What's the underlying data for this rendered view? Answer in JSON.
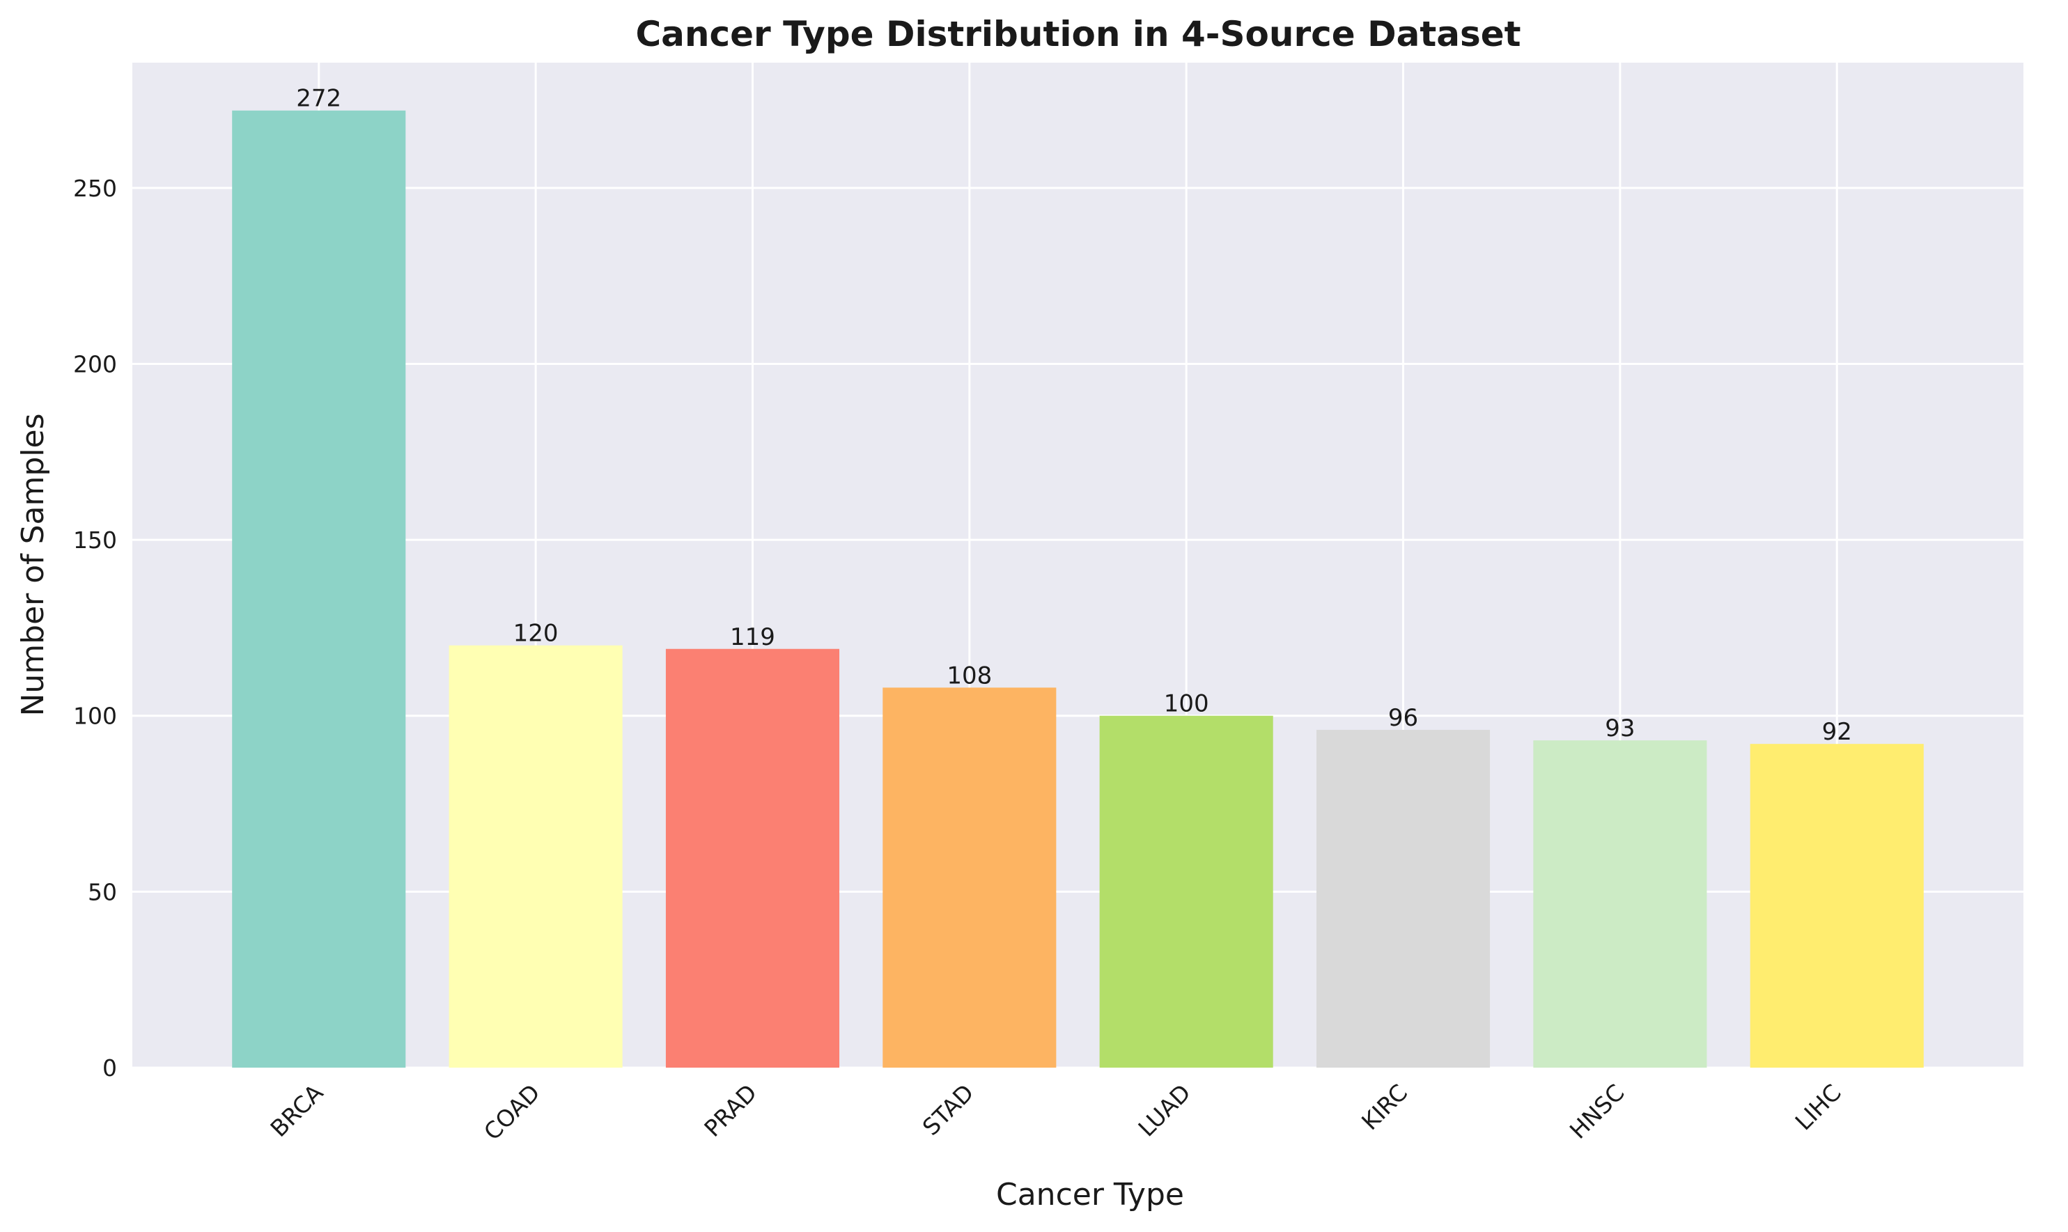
{
  "chart_data": {
    "type": "bar",
    "title": "Cancer Type Distribution in 4-Source Dataset",
    "xlabel": "Cancer Type",
    "ylabel": "Number of Samples",
    "categories": [
      "BRCA",
      "COAD",
      "PRAD",
      "STAD",
      "LUAD",
      "KIRC",
      "HNSC",
      "LIHC"
    ],
    "values": [
      272,
      120,
      119,
      108,
      100,
      96,
      93,
      92
    ],
    "colors": [
      "#8dd3c7",
      "#ffffb3",
      "#fb8072",
      "#fdb462",
      "#b3de69",
      "#d9d9d9",
      "#ccebc5",
      "#ffed6f"
    ],
    "ylim": [
      0,
      285.6
    ],
    "yticks": [
      0,
      50,
      100,
      150,
      200,
      250
    ],
    "grid": true,
    "legend": "none",
    "x_tick_rotation": 45,
    "background_color": "#eaeaf2",
    "grid_color": "#ffffff"
  }
}
